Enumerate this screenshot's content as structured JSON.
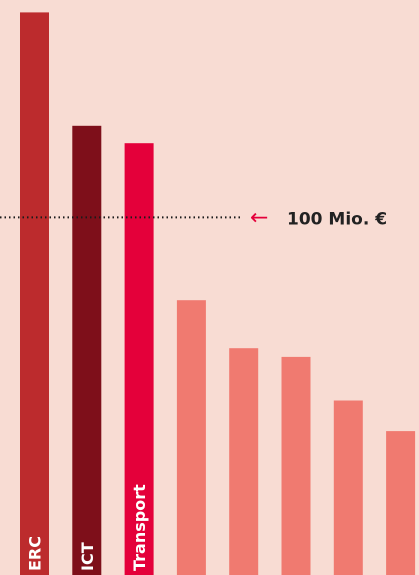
{
  "chart_data": {
    "type": "bar",
    "categories": [
      "ERC",
      "ICT",
      "Transport",
      "",
      "",
      "",
      "",
      ""
    ],
    "values": [
      129,
      103,
      99,
      63,
      52,
      50,
      40,
      33
    ],
    "bar_colors": [
      "#bc2b2d",
      "#7e0f1a",
      "#e4003a",
      "#f07a70",
      "#f07a70",
      "#f07a70",
      "#f07a70",
      "#f07a70"
    ],
    "ylim": [
      0,
      130
    ],
    "reference_line": {
      "value": 82,
      "label": "100 Mio. €",
      "arrow": "←"
    },
    "background": "#f8dcd3",
    "title": "",
    "xlabel": "",
    "ylabel": "",
    "grid": false
  }
}
